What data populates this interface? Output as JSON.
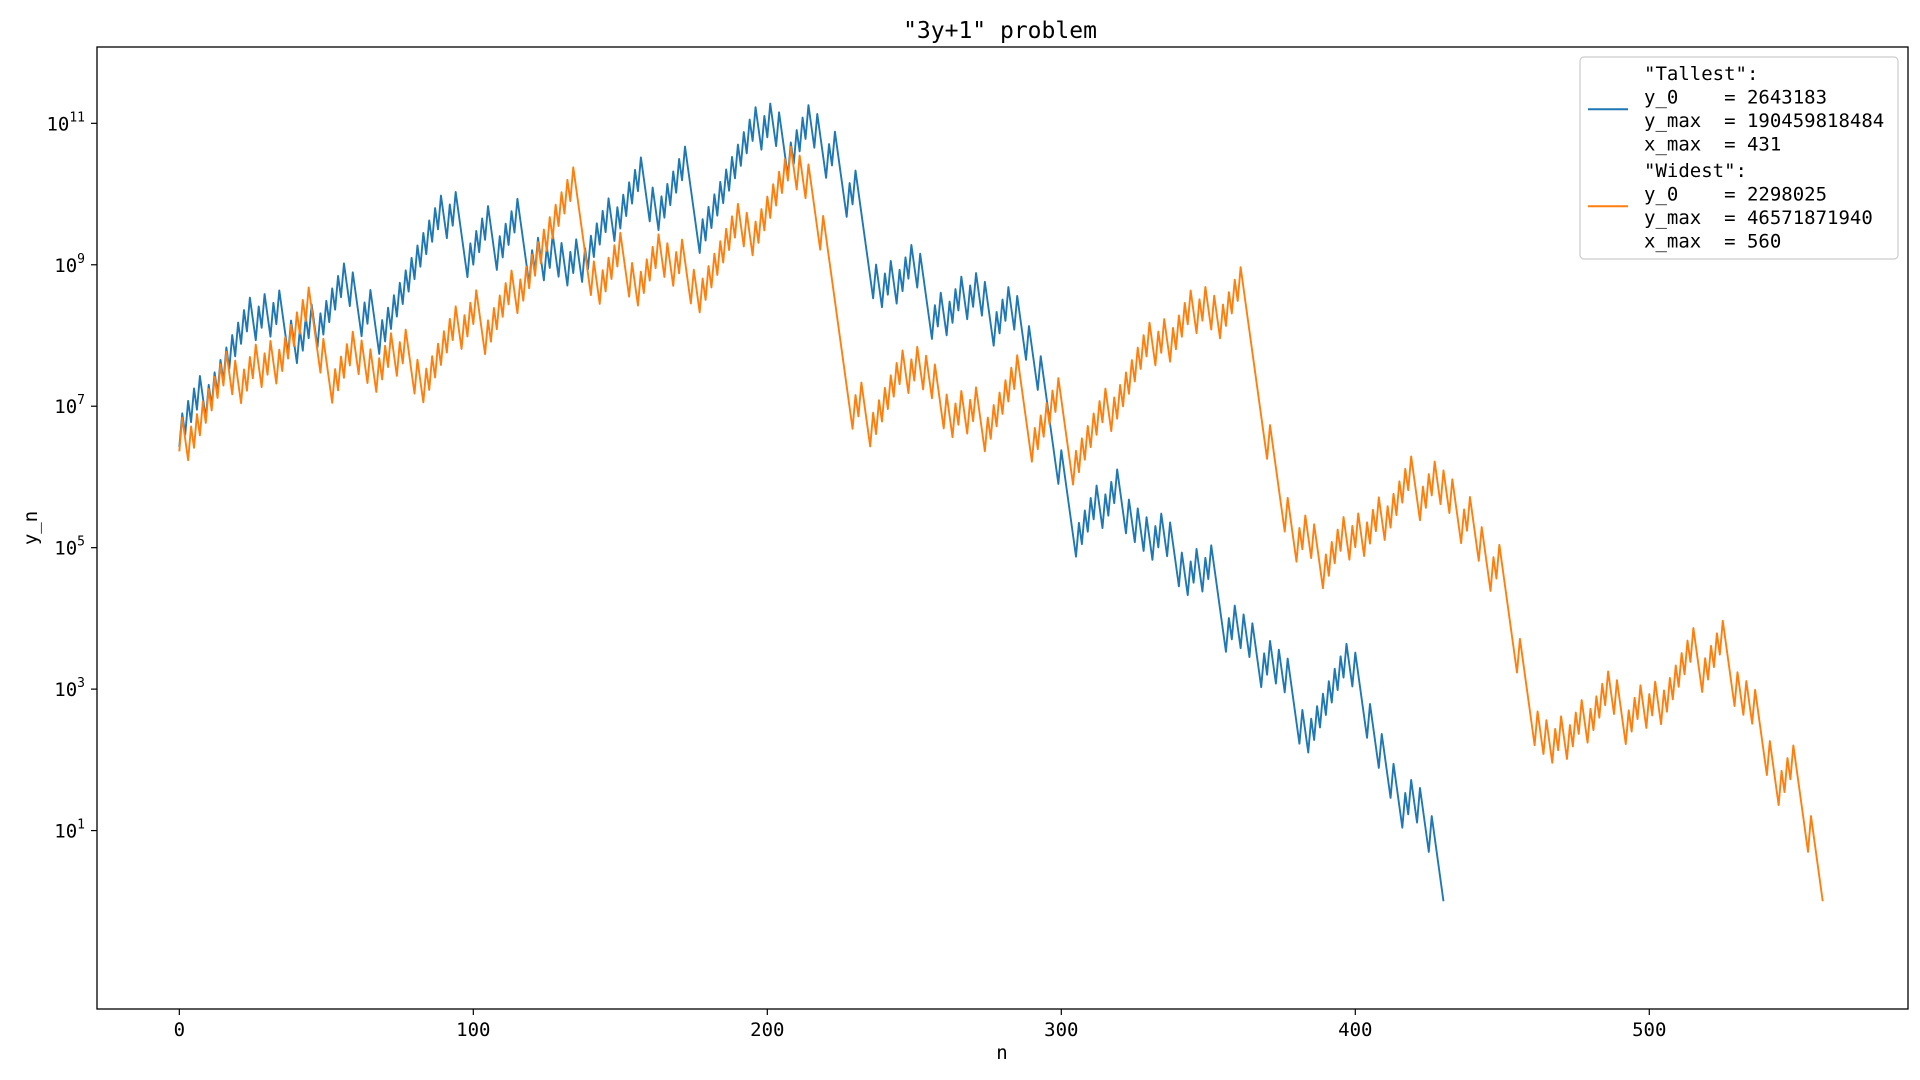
{
  "chart_data": {
    "type": "line",
    "title": "\"3y+1\" problem",
    "xlabel": "n",
    "ylabel": "y_n",
    "xlim": [
      -28,
      588
    ],
    "ylim": [
      0.03,
      1200000000000
    ],
    "yscale": "log",
    "grid": false,
    "legend": "top-right",
    "x_ticks": [
      {
        "value": 0,
        "label": "0"
      },
      {
        "value": 100,
        "label": "100"
      },
      {
        "value": 200,
        "label": "200"
      },
      {
        "value": 300,
        "label": "300"
      },
      {
        "value": 400,
        "label": "400"
      },
      {
        "value": 500,
        "label": "500"
      }
    ],
    "y_ticks": [
      {
        "value": 10,
        "base": "10",
        "exp": "1"
      },
      {
        "value": 1000,
        "base": "10",
        "exp": "3"
      },
      {
        "value": 100000,
        "base": "10",
        "exp": "5"
      },
      {
        "value": 10000000,
        "base": "10",
        "exp": "7"
      },
      {
        "value": 1000000000,
        "base": "10",
        "exp": "9"
      },
      {
        "value": 100000000000,
        "base": "10",
        "exp": "11"
      }
    ],
    "series": [
      {
        "name": "\"Tallest\":",
        "legend_lines": [
          "\"Tallest\":",
          "y_0    = 2643183",
          "y_max  = 190459818484",
          "x_max  = 431"
        ],
        "color": "#1f77b4",
        "y0": 2643183,
        "x_max": 431
      },
      {
        "name": "\"Widest\":",
        "legend_lines": [
          "\"Widest\":",
          "y_0    = 2298025",
          "y_max  = 46571871940",
          "x_max  = 560"
        ],
        "color": "#ff7f0e",
        "y0": 2298025,
        "x_max": 560
      }
    ]
  }
}
